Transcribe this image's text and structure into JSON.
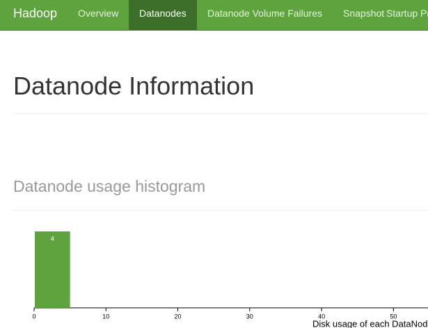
{
  "nav": {
    "brand": "Hadoop",
    "items": [
      "Overview",
      "Datanodes",
      "Datanode Volume Failures",
      "Snapshot",
      "Startup Progress"
    ],
    "active": 1
  },
  "page_title": "Datanode Information",
  "section_title": "Datanode usage histogram",
  "chart_data": {
    "type": "histogram",
    "xlabel": "Disk usage of each DataNode (%)",
    "bins": [
      0,
      5
    ],
    "values": [
      4
    ],
    "color": "#5fa33e",
    "xlim": [
      0,
      55
    ],
    "xticks": [
      0,
      10,
      20,
      30,
      40,
      50
    ],
    "ylim": [
      0,
      4
    ]
  }
}
